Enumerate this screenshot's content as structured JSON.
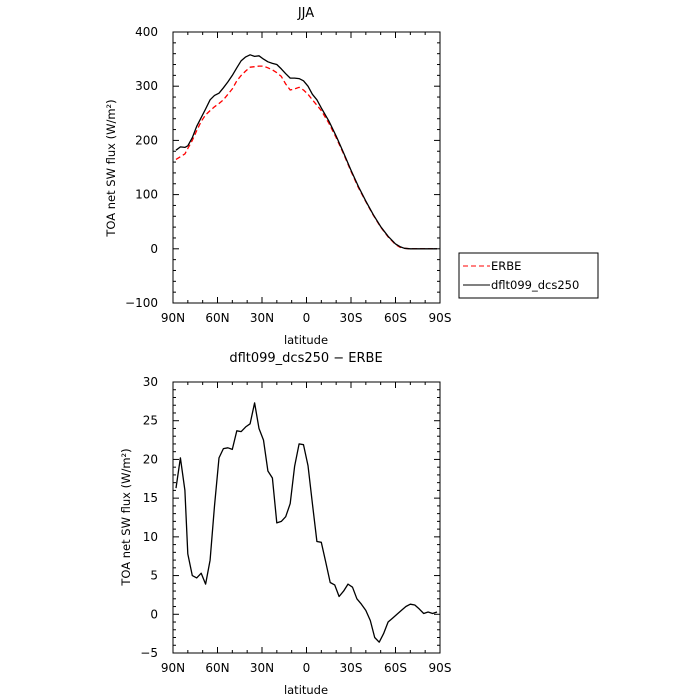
{
  "chart_data": [
    {
      "type": "line",
      "title": "JJA",
      "xlabel": "latitude",
      "ylabel": "TOA net SW flux (W/m²)",
      "xlim": [
        90,
        -90
      ],
      "ylim": [
        -100,
        400
      ],
      "x_ticks": [
        90,
        60,
        30,
        0,
        -30,
        -60,
        -90
      ],
      "x_tick_labels": [
        "90N",
        "60N",
        "30N",
        "0",
        "30S",
        "60S",
        "90S"
      ],
      "y_ticks": [
        -100,
        0,
        100,
        200,
        300,
        400
      ],
      "y_tick_labels": [
        "−100",
        "0",
        "100",
        "200",
        "300",
        "400"
      ],
      "legend_position": "right",
      "series": [
        {
          "name": "ERBE",
          "color": "#ff0000",
          "dash": "dashed",
          "x": [
            88,
            85,
            82,
            80,
            77,
            74,
            71,
            68,
            65,
            62,
            59,
            56,
            53,
            50,
            47,
            44,
            41,
            38,
            35,
            32,
            29,
            26,
            23,
            20,
            17,
            14,
            11,
            8,
            5,
            2,
            -1,
            -4,
            -7,
            -10,
            -15,
            -20,
            -25,
            -30,
            -35,
            -40,
            -45,
            -50,
            -55,
            -60,
            -63,
            -66,
            -70,
            -75,
            -80,
            -85,
            -88
          ],
          "values": [
            165,
            170,
            175,
            185,
            200,
            218,
            235,
            247,
            255,
            262,
            268,
            275,
            285,
            295,
            310,
            320,
            328,
            335,
            336,
            337,
            337,
            334,
            330,
            325,
            318,
            304,
            293,
            295,
            298,
            293,
            285,
            275,
            265,
            255,
            232,
            205,
            175,
            143,
            113,
            87,
            62,
            40,
            22,
            8,
            3,
            1,
            0,
            0,
            0,
            0,
            0
          ]
        },
        {
          "name": "dflt099_dcs250",
          "color": "#000000",
          "dash": "solid",
          "x": [
            88,
            85,
            82,
            80,
            77,
            74,
            71,
            68,
            65,
            62,
            59,
            56,
            53,
            50,
            47,
            44,
            41,
            38,
            35,
            32,
            29,
            26,
            23,
            20,
            17,
            14,
            11,
            8,
            5,
            2,
            -1,
            -4,
            -7,
            -10,
            -15,
            -20,
            -25,
            -30,
            -35,
            -40,
            -45,
            -50,
            -55,
            -60,
            -63,
            -66,
            -70,
            -75,
            -80,
            -85,
            -88
          ],
          "values": [
            182,
            188,
            187,
            190,
            205,
            226,
            242,
            258,
            275,
            283,
            287,
            297,
            308,
            320,
            334,
            347,
            354,
            358,
            355,
            356,
            350,
            345,
            342,
            340,
            332,
            323,
            315,
            315,
            314,
            310,
            300,
            285,
            275,
            260,
            236,
            208,
            177,
            145,
            115,
            88,
            63,
            41,
            23,
            9,
            4,
            1,
            0,
            0,
            0,
            0,
            0
          ]
        }
      ]
    },
    {
      "type": "line",
      "title": "dflt099_dcs250 − ERBE",
      "xlabel": "latitude",
      "ylabel": "TOA net SW flux (W/m²)",
      "xlim": [
        90,
        -90
      ],
      "ylim": [
        -5,
        30
      ],
      "x_ticks": [
        90,
        60,
        30,
        0,
        -30,
        -60,
        -90
      ],
      "x_tick_labels": [
        "90N",
        "60N",
        "30N",
        "0",
        "30S",
        "60S",
        "90S"
      ],
      "y_ticks": [
        -5,
        0,
        5,
        10,
        15,
        20,
        25,
        30
      ],
      "y_tick_labels": [
        "−5",
        "0",
        "5",
        "10",
        "15",
        "20",
        "25",
        "30"
      ],
      "series": [
        {
          "color": "#000000",
          "dash": "solid",
          "x": [
            88,
            85,
            82,
            80,
            77,
            74,
            71,
            68,
            65,
            62,
            59,
            56,
            53,
            50,
            47,
            44,
            41,
            38,
            35,
            32,
            29,
            26,
            23,
            20,
            17,
            14,
            11,
            8,
            5,
            2,
            -1,
            -4,
            -7,
            -10,
            -13,
            -16,
            -19,
            -22,
            -25,
            -28,
            -31,
            -34,
            -37,
            -40,
            -43,
            -46,
            -49,
            -52,
            -55,
            -58,
            -61,
            -64,
            -67,
            -70,
            -73,
            -76,
            -79,
            -82,
            -85,
            -88
          ],
          "values": [
            16.3,
            20.2,
            16.0,
            7.8,
            5.0,
            4.7,
            5.3,
            3.9,
            7.0,
            14.0,
            20.2,
            21.4,
            21.5,
            21.3,
            23.7,
            23.6,
            24.2,
            24.6,
            27.3,
            24.0,
            22.5,
            18.5,
            17.6,
            11.8,
            12.0,
            12.6,
            14.3,
            19.1,
            22.0,
            21.9,
            19.2,
            14.3,
            9.4,
            9.3,
            6.7,
            4.1,
            3.8,
            2.3,
            3.0,
            3.9,
            3.5,
            2.0,
            1.3,
            0.5,
            -0.8,
            -3.0,
            -3.6,
            -2.5,
            -1.0,
            -0.5,
            0.0,
            0.5,
            1.0,
            1.3,
            1.2,
            0.7,
            0.1,
            0.3,
            0.1,
            0.3
          ]
        }
      ]
    }
  ]
}
